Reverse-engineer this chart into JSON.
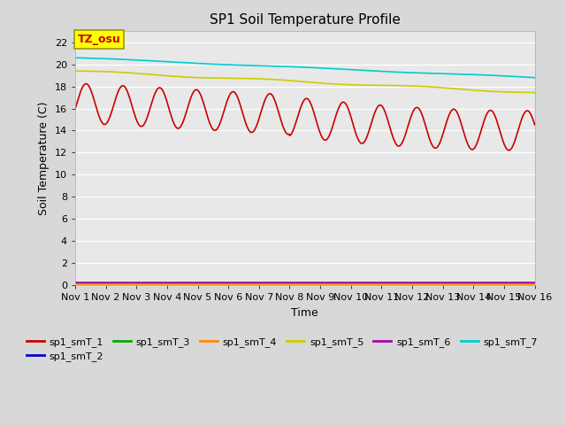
{
  "title": "SP1 Soil Temperature Profile",
  "xlabel": "Time",
  "ylabel": "Soil Temperature (C)",
  "annotation_text": "TZ_osu",
  "annotation_bg": "#ffff00",
  "annotation_fg": "#cc0000",
  "ylim": [
    0,
    23
  ],
  "yticks": [
    0,
    2,
    4,
    6,
    8,
    10,
    12,
    14,
    16,
    18,
    20,
    22
  ],
  "xtick_labels": [
    "Nov 1",
    "Nov 2",
    "Nov 3",
    "Nov 4",
    "Nov 5",
    "Nov 6",
    "Nov 7",
    "Nov 8",
    "Nov 9",
    "Nov 10",
    "Nov 11",
    "Nov 12",
    "Nov 13",
    "Nov 14",
    "Nov 15",
    "Nov 16"
  ],
  "bg_color": "#d8d8d8",
  "plot_bg_color": "#e8e8e8",
  "series": {
    "sp1_smT_1": {
      "color": "#cc0000",
      "linewidth": 1.2
    },
    "sp1_smT_2": {
      "color": "#0000cc",
      "linewidth": 1.2
    },
    "sp1_smT_3": {
      "color": "#00aa00",
      "linewidth": 1.2
    },
    "sp1_smT_4": {
      "color": "#ff8800",
      "linewidth": 1.2
    },
    "sp1_smT_5": {
      "color": "#cccc00",
      "linewidth": 1.2
    },
    "sp1_smT_6": {
      "color": "#aa00aa",
      "linewidth": 1.2
    },
    "sp1_smT_7": {
      "color": "#00cccc",
      "linewidth": 1.2
    }
  },
  "legend_order": [
    "sp1_smT_1",
    "sp1_smT_2",
    "sp1_smT_3",
    "sp1_smT_4",
    "sp1_smT_5",
    "sp1_smT_6",
    "sp1_smT_7"
  ]
}
